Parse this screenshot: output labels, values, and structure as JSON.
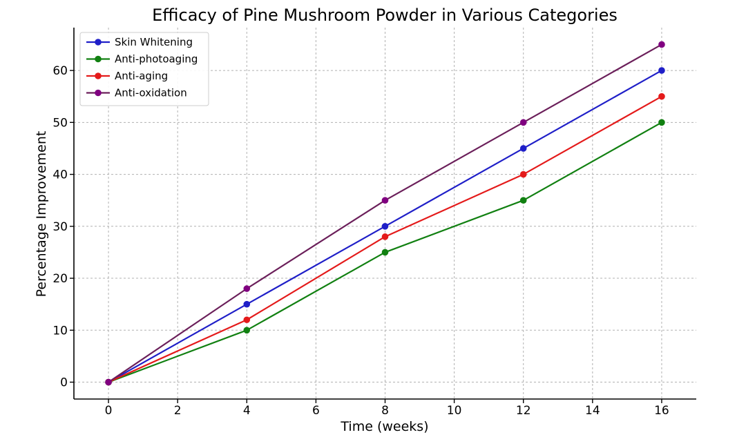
{
  "chart_data": {
    "type": "line",
    "title": "Efficacy of Pine Mushroom Powder in Various Categories",
    "xlabel": "Time (weeks)",
    "ylabel": "Percentage Improvement",
    "xlim": [
      -1,
      17
    ],
    "ylim": [
      -3.25,
      68.25
    ],
    "xticks": [
      0,
      2,
      4,
      6,
      8,
      10,
      12,
      14,
      16
    ],
    "yticks": [
      0,
      10,
      20,
      30,
      40,
      50,
      60
    ],
    "grid": true,
    "legend_position": "top-left",
    "x": [
      0,
      4,
      8,
      12,
      16
    ],
    "series": [
      {
        "name": "Skin Whitening",
        "color": "#1f1fc8",
        "values": [
          0,
          15,
          30,
          45,
          60
        ]
      },
      {
        "name": "Anti-photoaging",
        "color": "#118011",
        "values": [
          0,
          10,
          25,
          35,
          50
        ]
      },
      {
        "name": "Anti-aging",
        "color": "#e41a1a",
        "values": [
          0,
          12,
          28,
          40,
          55
        ]
      },
      {
        "name": "Anti-oxidation",
        "color": "#6b1f5a",
        "marker_color": "#800080",
        "values": [
          0,
          18,
          35,
          50,
          65
        ]
      }
    ]
  }
}
